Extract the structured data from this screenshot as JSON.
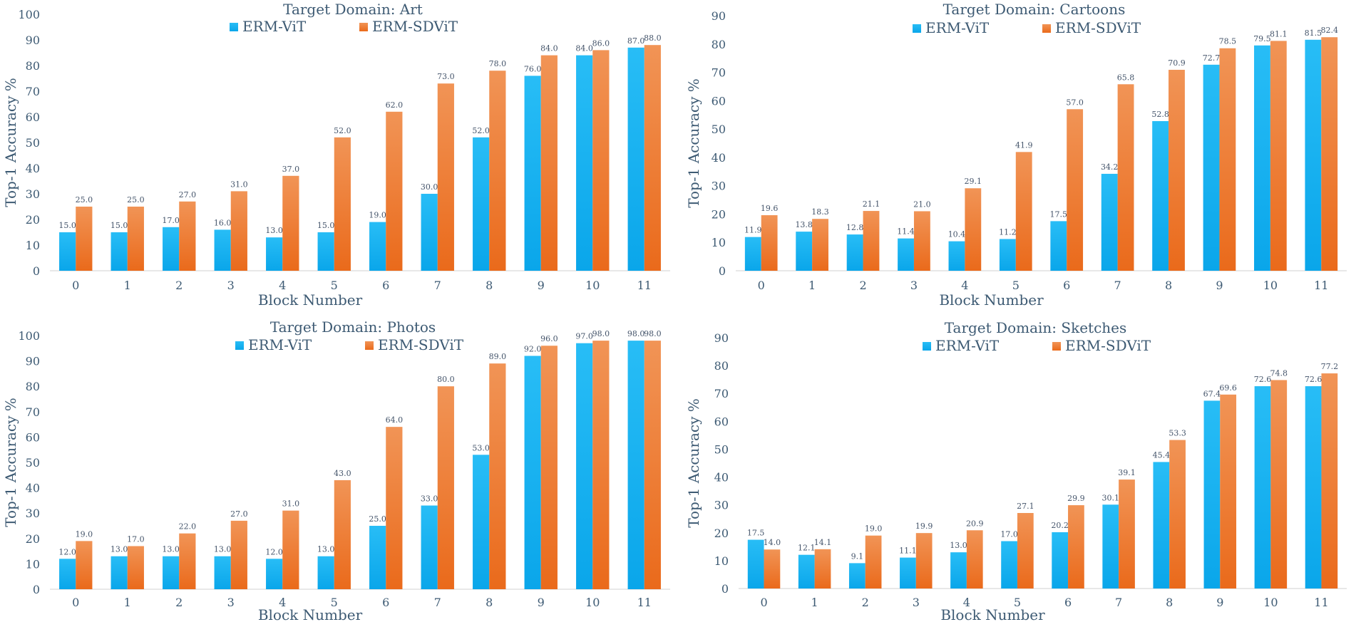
{
  "colors": {
    "vit": "#12aef0",
    "sdvit": "#ef7d32",
    "text": "#3d5a73"
  },
  "chart_data": [
    {
      "type": "bar",
      "title": "Target Domain: Art",
      "xlabel": "Block Number",
      "ylabel": "Top-1 Accuracy %",
      "ylim": [
        0,
        100
      ],
      "ystep": 10,
      "categories": [
        "0",
        "1",
        "2",
        "3",
        "4",
        "5",
        "6",
        "7",
        "8",
        "9",
        "10",
        "11"
      ],
      "legend": "top-center",
      "series": [
        {
          "name": "ERM-ViT",
          "values": [
            15.0,
            15.0,
            17.0,
            16.0,
            13.0,
            15.0,
            19.0,
            30.0,
            52.0,
            76.0,
            84.0,
            87.0
          ],
          "labels": [
            "15.0",
            "15.0",
            "17.0",
            "16.0",
            "13.0",
            "15.0",
            "19.0",
            "30.0",
            "52.0",
            "76.0",
            "84.0",
            "87.0"
          ]
        },
        {
          "name": "ERM-SDViT",
          "values": [
            25.0,
            25.0,
            27.0,
            31.0,
            37.0,
            52.0,
            62.0,
            73.0,
            78.0,
            84.0,
            86.0,
            88.0
          ],
          "labels": [
            "25.0",
            "25.0",
            "27.0",
            "31.0",
            "37.0",
            "52.0",
            "62.0",
            "73.0",
            "78.0",
            "84.0",
            "86.0",
            "88.0"
          ]
        }
      ]
    },
    {
      "type": "bar",
      "title": "Target Domain: Cartoons",
      "xlabel": "Block Number",
      "ylabel": "Top-1 Accuracy %",
      "ylim": [
        0,
        90
      ],
      "ystep": 10,
      "categories": [
        "0",
        "1",
        "2",
        "3",
        "4",
        "5",
        "6",
        "7",
        "8",
        "9",
        "10",
        "11"
      ],
      "legend": "top-center",
      "series": [
        {
          "name": "ERM-ViT",
          "values": [
            11.9,
            13.8,
            12.8,
            11.4,
            10.4,
            11.2,
            17.5,
            34.2,
            52.8,
            72.7,
            79.5,
            81.5
          ],
          "labels": [
            "11.9",
            "13.8",
            "12.8",
            "11.4",
            "10.4",
            "11.2",
            "17.5",
            "34.2",
            "52.8",
            "72.7",
            "79.5",
            "81.5"
          ]
        },
        {
          "name": "ERM-SDViT",
          "values": [
            19.6,
            18.3,
            21.1,
            21.0,
            29.1,
            41.9,
            57.0,
            65.8,
            70.9,
            78.5,
            81.1,
            82.4
          ],
          "labels": [
            "19.6",
            "18.3",
            "21.1",
            "21.0",
            "29.1",
            "41.9",
            "57.0",
            "65.8",
            "70.9",
            "78.5",
            "81.1",
            "82.4"
          ]
        }
      ]
    },
    {
      "type": "bar",
      "title": "Target Domain: Photos",
      "xlabel": "Block Number",
      "ylabel": "Top-1 Accuracy %",
      "ylim": [
        0,
        100
      ],
      "ystep": 10,
      "categories": [
        "0",
        "1",
        "2",
        "3",
        "4",
        "5",
        "6",
        "7",
        "8",
        "9",
        "10",
        "11"
      ],
      "legend": "top-center",
      "series": [
        {
          "name": "ERM-ViT",
          "values": [
            12.0,
            13.0,
            13.0,
            13.0,
            12.0,
            13.0,
            25.0,
            33.0,
            53.0,
            92.0,
            97.0,
            98.0
          ],
          "labels": [
            "12.0",
            "13.0",
            "13.0",
            "13.0",
            "12.0",
            "13.0",
            "25.0",
            "33.0",
            "53.0",
            "92.0",
            "97.0",
            "98.0"
          ]
        },
        {
          "name": "ERM-SDViT",
          "values": [
            19.0,
            17.0,
            22.0,
            27.0,
            31.0,
            43.0,
            64.0,
            80.0,
            89.0,
            96.0,
            98.0,
            98.0
          ],
          "labels": [
            "19.0",
            "17.0",
            "22.0",
            "27.0",
            "31.0",
            "43.0",
            "64.0",
            "80.0",
            "89.0",
            "96.0",
            "98.0",
            "98.0"
          ]
        }
      ]
    },
    {
      "type": "bar",
      "title": "Target Domain: Sketches",
      "xlabel": "Block Number",
      "ylabel": "Top-1 Accuracy %",
      "ylim": [
        0,
        90
      ],
      "ystep": 10,
      "categories": [
        "0",
        "1",
        "2",
        "3",
        "4",
        "5",
        "6",
        "7",
        "8",
        "9",
        "10",
        "11"
      ],
      "legend": "top-center",
      "series": [
        {
          "name": "ERM-ViT",
          "values": [
            17.5,
            12.1,
            9.1,
            11.1,
            13.0,
            17.0,
            20.2,
            30.1,
            45.4,
            67.4,
            72.6,
            72.6
          ],
          "labels": [
            "17.5",
            "12.1",
            "9.1",
            "11.1",
            "13.0",
            "17.0",
            "20.2",
            "30.1",
            "45.4",
            "67.4",
            "72.6",
            "72.6"
          ]
        },
        {
          "name": "ERM-SDViT",
          "values": [
            14.0,
            14.1,
            19.0,
            19.9,
            20.9,
            27.1,
            29.9,
            39.1,
            53.3,
            69.6,
            74.8,
            77.2
          ],
          "labels": [
            "14.0",
            "14.1",
            "19.0",
            "19.9",
            "20.9",
            "27.1",
            "29.9",
            "39.1",
            "53.3",
            "69.6",
            "74.8",
            "77.2"
          ]
        }
      ]
    }
  ]
}
